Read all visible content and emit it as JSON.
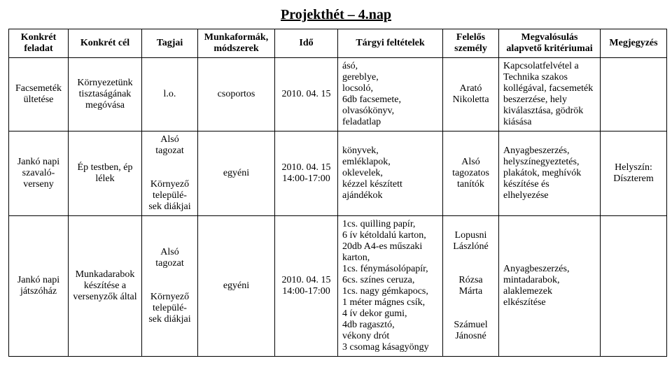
{
  "title": "Projekthét – 4.nap",
  "headers": [
    "Konkrét feladat",
    "Konkrét cél",
    "Tagjai",
    "Munkaformák, módszerek",
    "Idő",
    "Tárgyi feltételek",
    "Felelős személy",
    "Megvalósulás alapvető kritériumai",
    "Megjegyzés"
  ],
  "rows": [
    {
      "feladat": "Facsemeték ültetése",
      "cel": "Környezetünk tisztaságának megóvása",
      "tagjai": "l.o.",
      "modszerek": "csoportos",
      "ido": "2010. 04. 15",
      "targyi": "ásó,\ngereblye,\nlocsoló,\n6db facsemete,\nolvasókönyv,\nfeladatlap",
      "felelos": "Arató Nikoletta",
      "kriteriumai": "Kapcsolatfelvétel a Technika szakos kollégával, facsemeték beszerzése, hely kiválasztása, gödrök kiásása",
      "megjegyzes": ""
    },
    {
      "feladat": "Jankó napi szavaló-verseny",
      "cel": "Ép testben, ép lélek",
      "tagjai": "Alsó tagozat\n\nKörnyező települé-sek diákjai",
      "modszerek": "egyéni",
      "ido": "2010. 04. 15\n14:00-17:00",
      "targyi": "könyvek,\nemléklapok,\noklevelek,\nkézzel készített ajándékok",
      "felelos": "Alsó tagozatos tanítók",
      "kriteriumai": "Anyagbeszerzés, helyszínegyeztetés, plakátok, meghívók készítése és elhelyezése",
      "megjegyzes": "Helyszín: Díszterem"
    },
    {
      "feladat": "Jankó napi játszóház",
      "cel": "Munkadarabok készítése a versenyzők által",
      "tagjai": "Alsó tagozat\n\nKörnyező települé-sek diákjai",
      "modszerek": "egyéni",
      "ido": "2010. 04. 15\n14:00-17:00",
      "targyi": "1cs. quilling papír,\n6 ív kétoldalú karton,\n20db A4-es műszaki karton,\n1cs. fénymásolópapír,\n6cs. színes ceruza,\n1cs. nagy gémkapocs,\n1 méter mágnes csík,\n4 ív dekor gumi,\n4db ragasztó,\nvékony drót\n3 csomag kásagyöngy",
      "felelos": "Lopusni Lászlóné\n\nRózsa Márta\n\nSzámuel Jánosné",
      "kriteriumai": "Anyagbeszerzés, mintadarabok, alaklemezek elkészítése",
      "megjegyzes": ""
    }
  ]
}
